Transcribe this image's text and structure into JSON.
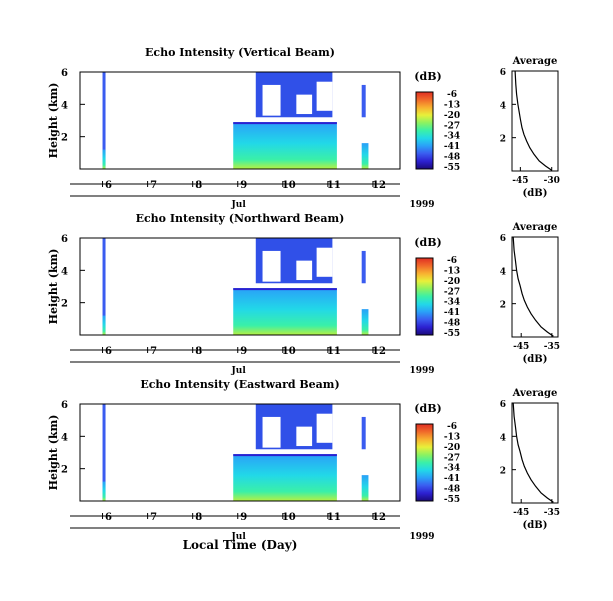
{
  "figure": {
    "xlabel": "Local Time (Day)",
    "month_label": "Jul",
    "year_label": "1999"
  },
  "colorbar": {
    "unit": "(dB)",
    "ticks": [
      "-6",
      "-13",
      "-20",
      "-27",
      "-34",
      "-41",
      "-48",
      "-55"
    ],
    "colors": [
      "#1a0a7a",
      "#2c20d0",
      "#3a5cf0",
      "#2aa0f8",
      "#22d8e8",
      "#3af0a8",
      "#8cf260",
      "#e8f03a",
      "#f8b030",
      "#f06a2a",
      "#e02e22"
    ]
  },
  "chart_data": [
    {
      "type": "heatmap",
      "title": "Echo Intensity (Vertical Beam)",
      "ylabel": "Height (km)",
      "y_ticks": [
        2,
        4,
        6
      ],
      "ylim": [
        0,
        6
      ],
      "x_ticks": [
        6,
        7,
        8,
        9,
        10,
        11,
        12
      ],
      "xlim": [
        5.5,
        12.6
      ],
      "data_segments_days": [
        [
          6.0,
          6.05
        ],
        [
          8.9,
          11.2
        ],
        [
          11.75,
          11.9
        ]
      ],
      "cloud_echo_region": {
        "x_days": [
          9.4,
          11.1
        ],
        "height_km": [
          3.2,
          6.0
        ],
        "dB": -52
      }
    },
    {
      "type": "line",
      "title": "Average",
      "xlabel": "(dB)",
      "x_ticks": [
        -45,
        -30
      ],
      "xlim": [
        -49,
        -27
      ],
      "y_ticks": [
        2,
        4,
        6
      ],
      "ylim": [
        0,
        6
      ],
      "x": [
        -47.5,
        -47.2,
        -46.8,
        -46.2,
        -45.5,
        -45,
        -44.2,
        -43.3,
        -42,
        -40.5,
        -38.5,
        -36,
        -33,
        -30
      ],
      "y": [
        6.0,
        5.2,
        4.6,
        4.0,
        3.5,
        3.1,
        2.6,
        2.2,
        1.8,
        1.4,
        1.0,
        0.6,
        0.3,
        0.05
      ]
    },
    {
      "type": "heatmap",
      "title": "Echo Intensity (Northward Beam)",
      "ylabel": "Height (km)",
      "y_ticks": [
        2,
        4,
        6
      ],
      "ylim": [
        0,
        6
      ],
      "x_ticks": [
        6,
        7,
        8,
        9,
        10,
        11,
        12
      ],
      "xlim": [
        5.5,
        12.6
      ],
      "data_segments_days": [
        [
          6.0,
          6.05
        ],
        [
          8.9,
          11.2
        ],
        [
          11.75,
          11.9
        ]
      ],
      "cloud_echo_region": {
        "x_days": [
          9.4,
          11.1
        ],
        "height_km": [
          3.2,
          6.0
        ],
        "dB": -52
      }
    },
    {
      "type": "line",
      "title": "Average",
      "xlabel": "(dB)",
      "x_ticks": [
        -45,
        -35
      ],
      "xlim": [
        -48,
        -33
      ],
      "y_ticks": [
        2,
        4,
        6
      ],
      "ylim": [
        0,
        6
      ],
      "x": [
        -47.6,
        -47.3,
        -46.9,
        -46.5,
        -46,
        -45.4,
        -44.7,
        -44,
        -43,
        -41.8,
        -40.3,
        -38.5,
        -36.5,
        -34.5
      ],
      "y": [
        6.0,
        5.2,
        4.6,
        4.0,
        3.5,
        3.1,
        2.6,
        2.2,
        1.8,
        1.4,
        1.0,
        0.6,
        0.3,
        0.05
      ]
    },
    {
      "type": "heatmap",
      "title": "Echo Intensity (Eastward Beam)",
      "ylabel": "Height (km)",
      "y_ticks": [
        2,
        4,
        6
      ],
      "ylim": [
        0,
        6
      ],
      "x_ticks": [
        6,
        7,
        8,
        9,
        10,
        11,
        12
      ],
      "xlim": [
        5.5,
        12.6
      ],
      "data_segments_days": [
        [
          6.0,
          6.05
        ],
        [
          8.9,
          11.2
        ],
        [
          11.75,
          11.9
        ]
      ],
      "cloud_echo_region": {
        "x_days": [
          9.4,
          11.1
        ],
        "height_km": [
          3.2,
          6.0
        ],
        "dB": -52
      }
    },
    {
      "type": "line",
      "title": "Average",
      "xlabel": "(dB)",
      "x_ticks": [
        -45,
        -35
      ],
      "xlim": [
        -48,
        -33
      ],
      "y_ticks": [
        2,
        4,
        6
      ],
      "ylim": [
        0,
        6
      ],
      "x": [
        -47.6,
        -47.3,
        -46.9,
        -46.5,
        -46,
        -45.4,
        -44.7,
        -44,
        -43,
        -41.8,
        -40.3,
        -38.5,
        -36.5,
        -34.5
      ],
      "y": [
        6.0,
        5.2,
        4.6,
        4.0,
        3.5,
        3.1,
        2.6,
        2.2,
        1.8,
        1.4,
        1.0,
        0.6,
        0.3,
        0.05
      ]
    }
  ]
}
